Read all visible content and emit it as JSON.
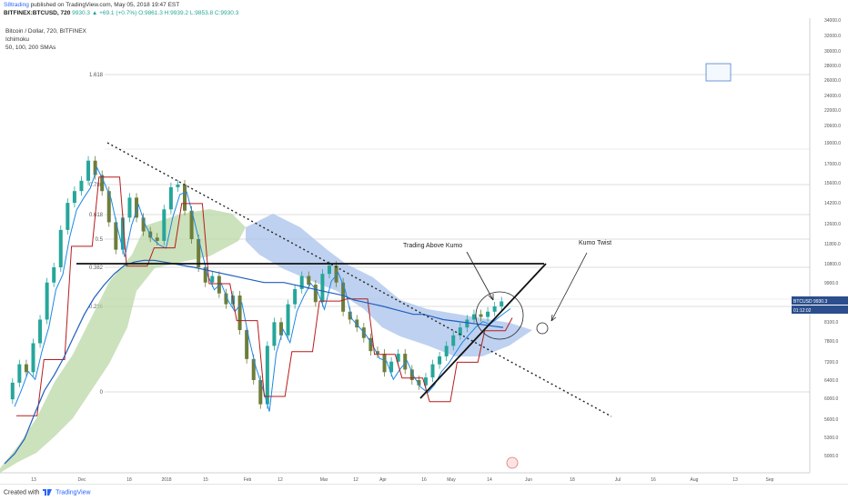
{
  "header": {
    "user": "S8trading",
    "published_text": "published on TradingView.com, May 05, 2018 19:47 EST",
    "symbol": "BITFINEX:BTCUSD, 720",
    "change": "▲ +69.1 (+0.7%)",
    "last": "9930.3",
    "ohlc": "O:9861.3 H:9939.2 L:9853.8 C:9930.3"
  },
  "legend": {
    "title": "Bitcoin / Dollar, 720, BITFINEX",
    "line2": "Ichimoku",
    "line3": "50, 100, 200 SMAs"
  },
  "footer": {
    "created": "Created with",
    "brand": "TradingView"
  },
  "colors": {
    "up": "#26a69a",
    "down": "#6d7e3a",
    "cloud_green": "#b9d8a6",
    "cloud_blue": "#aec6ec",
    "tenkan": "#1e88e5",
    "kijun": "#b71c1c",
    "sma200": "#1e5fbf",
    "grid": "#e8e8e8",
    "price_tag": "#2b4e8c"
  },
  "chart_data": {
    "type": "line",
    "title": "Bitcoin / Dollar, 720, BITFINEX",
    "ylim": [
      5000,
      36000
    ],
    "y_ticks": [
      "34000.0",
      "32000.0",
      "30000.0",
      "28000.0",
      "26000.0",
      "24000.0",
      "22000.0",
      "20600.0",
      "19000.0",
      "17000.0",
      "15600.0",
      "14200.0",
      "12600.0",
      "11800.0",
      "10800.0",
      "9900.0",
      "8700.0",
      "8100.0",
      "7800.0",
      "7200.0",
      "6400.0",
      "6000.0",
      "5600.0",
      "5300.0",
      "5000.0"
    ],
    "x_ticks": [
      "13",
      "Dec",
      "18",
      "2018",
      "15",
      "Feb",
      "12",
      "Mar",
      "12",
      "Apr",
      "16",
      "May",
      "14",
      "Jun",
      "18",
      "Jul",
      "16",
      "Aug",
      "13",
      "Sep"
    ],
    "price_labels": [
      {
        "label": "BTCUSD",
        "value": "9930.3"
      },
      {
        "label": "",
        "value": "01:12:02"
      }
    ],
    "fib_levels": [
      {
        "label": "1.618",
        "value": 28500
      },
      {
        "label": "0.786",
        "value": 17000
      },
      {
        "label": "0.618",
        "value": 14700
      },
      {
        "label": "0.5",
        "value": 13100
      },
      {
        "label": "0.382",
        "value": 11500
      },
      {
        "label": "0.236",
        "value": 9700
      },
      {
        "label": "0",
        "value": 6450
      }
    ],
    "annotations": [
      {
        "text": "Trading Above Kumo"
      },
      {
        "text": "Kumo Twist"
      }
    ],
    "series": [
      {
        "name": "Price",
        "values": [
          6300,
          6800,
          7500,
          7200,
          8300,
          9200,
          10800,
          11500,
          13700,
          15600,
          16500,
          17400,
          19500,
          18000,
          16500,
          14200,
          12500,
          14500,
          16000,
          14500,
          13600,
          13200,
          13000,
          15100,
          16800,
          17000,
          15000,
          13100,
          11500,
          10800,
          11100,
          10300,
          9800,
          10200,
          8800,
          7700,
          6900,
          6200,
          8200,
          9100,
          8600,
          9800,
          10500,
          11100,
          10700,
          9900,
          11200,
          11600,
          10800,
          9500,
          9200,
          8900,
          8500,
          8000,
          7900,
          7200,
          7600,
          7900,
          7300,
          6900,
          6700,
          7000,
          7500,
          7800,
          8200,
          8600,
          8900,
          9200,
          9400,
          9300,
          9500,
          9700,
          9930
        ]
      },
      {
        "name": "",
        "values": [
          5000,
          5200,
          5500,
          6000,
          6500,
          7100,
          7800,
          8600,
          9400,
          10100,
          10700,
          11200,
          11600,
          11800,
          11900,
          11900,
          11800,
          11700,
          11600,
          11500,
          11400,
          11300,
          11200,
          11100,
          11000,
          10900,
          10800,
          10800,
          10800,
          10700,
          10600,
          10500,
          10400,
          10300,
          10200,
          10000,
          9900,
          9800,
          9700,
          9600,
          9500,
          9400,
          9400,
          9300,
          9200,
          9150,
          9100,
          9050,
          9000,
          8950,
          8900
        ]
      }
    ]
  }
}
